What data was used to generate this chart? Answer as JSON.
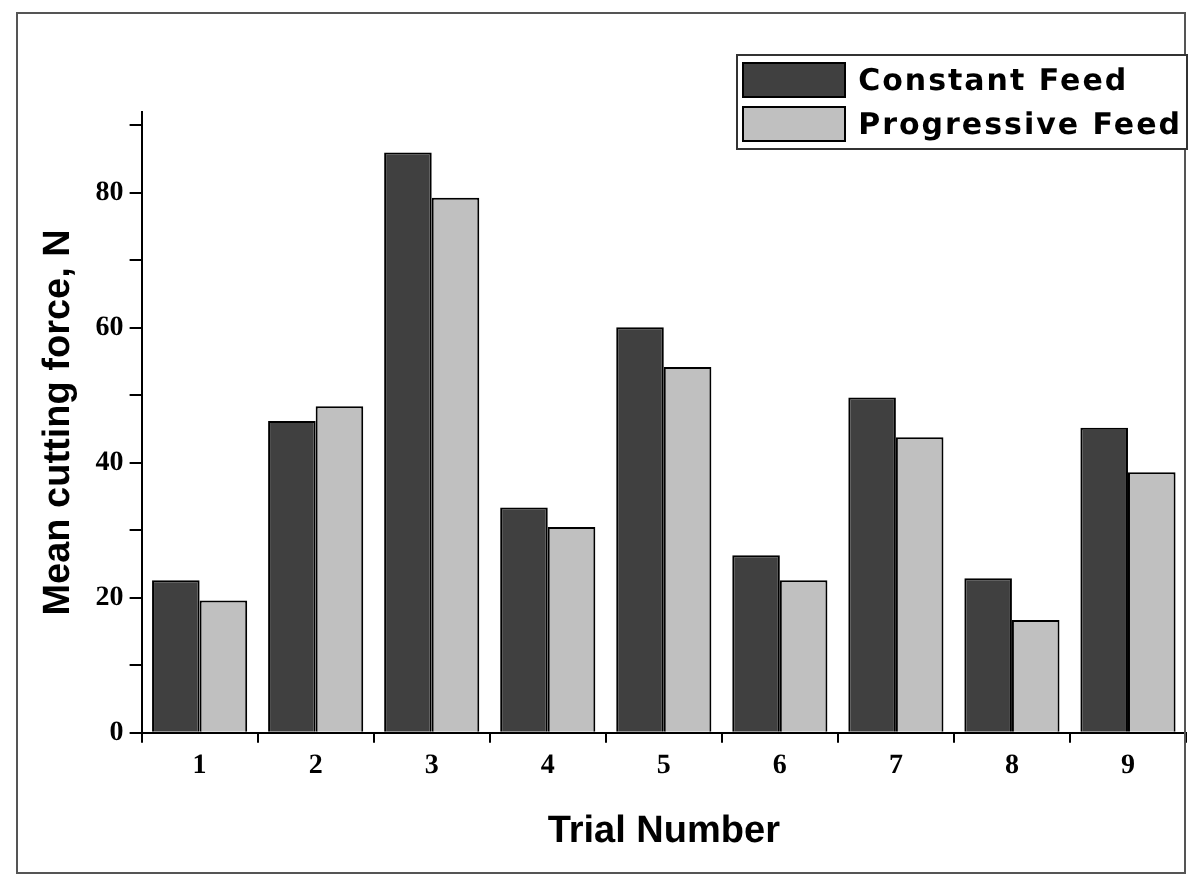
{
  "chart_data": {
    "type": "bar",
    "xlabel": "Trial Number",
    "ylabel": "Mean cutting force, N",
    "categories": [
      "1",
      "2",
      "3",
      "4",
      "5",
      "6",
      "7",
      "8",
      "9"
    ],
    "series": [
      {
        "name": "Constant Feed",
        "color": "#404040",
        "values": [
          22.6,
          46.2,
          86,
          33.4,
          60.1,
          26.3,
          49.7,
          22.9,
          45.2
        ]
      },
      {
        "name": "Progressive Feed",
        "color": "#c0c0c0",
        "values": [
          19.6,
          48.4,
          79.3,
          30.5,
          54.2,
          22.6,
          43.8,
          16.7,
          38.6
        ]
      }
    ],
    "ylim": [
      0,
      92
    ],
    "yticks": [
      0,
      {
        "value": 10,
        "label": null
      },
      20,
      {
        "value": 30,
        "label": null
      },
      40,
      {
        "value": 50,
        "label": null
      },
      60,
      {
        "value": 70,
        "label": null
      },
      80,
      {
        "value": 90,
        "label": null
      }
    ],
    "grid": false,
    "legend": "top right"
  }
}
